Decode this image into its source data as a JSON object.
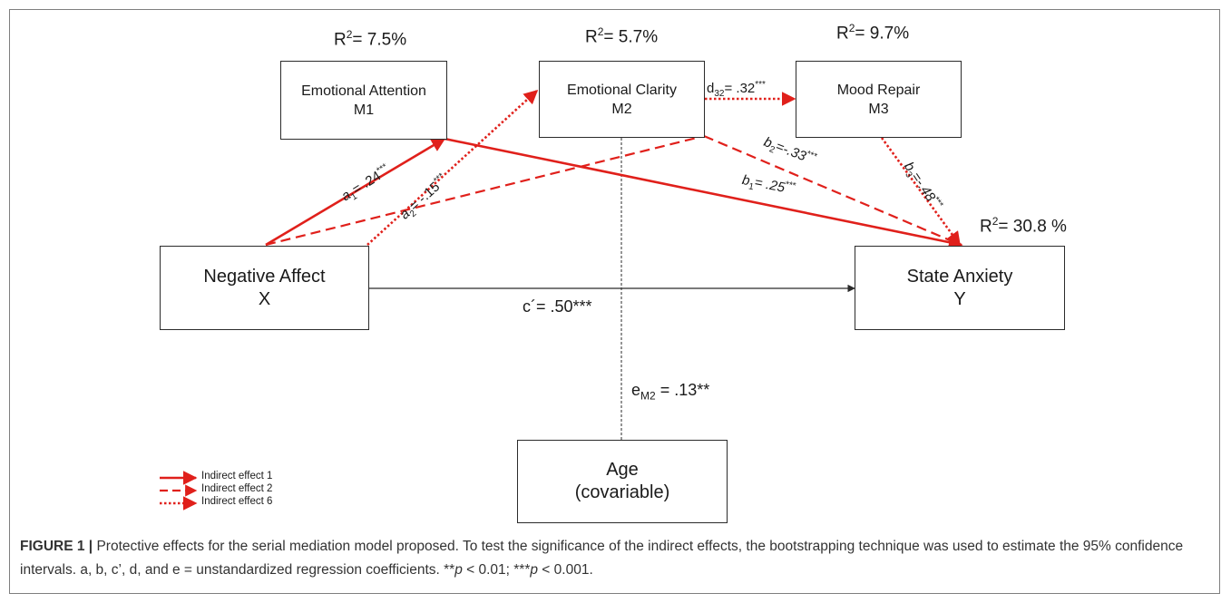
{
  "boxes": {
    "m1": {
      "line1": "Emotional Attention",
      "line2": "M1"
    },
    "m2": {
      "line1": "Emotional Clarity",
      "line2": "M2"
    },
    "m3": {
      "line1": "Mood Repair",
      "line2": "M3"
    },
    "x": {
      "line1": "Negative Affect",
      "line2": "X"
    },
    "y": {
      "line1": "State Anxiety",
      "line2": "Y"
    },
    "age": {
      "line1": "Age",
      "line2": "(covariable)"
    }
  },
  "r_squared": {
    "m1": {
      "prefix": "R",
      "sup": "2",
      "value": "= 7.5%"
    },
    "m2": {
      "prefix": "R",
      "sup": "2",
      "value": "= 5.7%"
    },
    "m3": {
      "prefix": "R",
      "sup": "2",
      "value": "= 9.7%"
    },
    "y": {
      "prefix": "R",
      "sup": "2",
      "value": "= 30.8 %"
    }
  },
  "coefficients": {
    "a1": {
      "letter": "a",
      "sub": "1",
      "value": "= .24",
      "stars": "***"
    },
    "a2": {
      "letter": "a",
      "sub": "2",
      "value": "= -.15",
      "stars": "***"
    },
    "b1": {
      "letter": "b",
      "sub": "1",
      "value": "= .25",
      "stars": "***"
    },
    "b2": {
      "letter": "b",
      "sub": "2",
      "value": "=-.33",
      "stars": "***"
    },
    "b3": {
      "letter": "b",
      "sub": "3",
      "value": "=-.48",
      "stars": "***"
    },
    "d32": {
      "letter": "d",
      "sub": "32",
      "value": "= .32",
      "stars": "***"
    },
    "c_prime": {
      "text": "c´= .50***"
    },
    "e_m2": {
      "letter": "e",
      "sub": "M2",
      "value": " = .13**"
    }
  },
  "legend": [
    {
      "label": "Indirect effect 1",
      "style": "solid"
    },
    {
      "label": "Indirect effect 2",
      "style": "dashed"
    },
    {
      "label": "Indirect effect 6",
      "style": "dotted"
    }
  ],
  "caption": {
    "label": "FIGURE 1 |",
    "text_part1": " Protective effects for the serial mediation model proposed. To test the significance of the indirect effects, the bootstrapping technique was used to estimate the 95% confidence intervals. a, b, c’, d, and e = unstandardized regression coefficients. **",
    "p": "p",
    "text_part2": " < 0.01; ***",
    "text_part3": " < 0.001."
  },
  "colors": {
    "effect": "#e0201b",
    "line": "#2b2b2b",
    "text": "#1a1a1a"
  }
}
